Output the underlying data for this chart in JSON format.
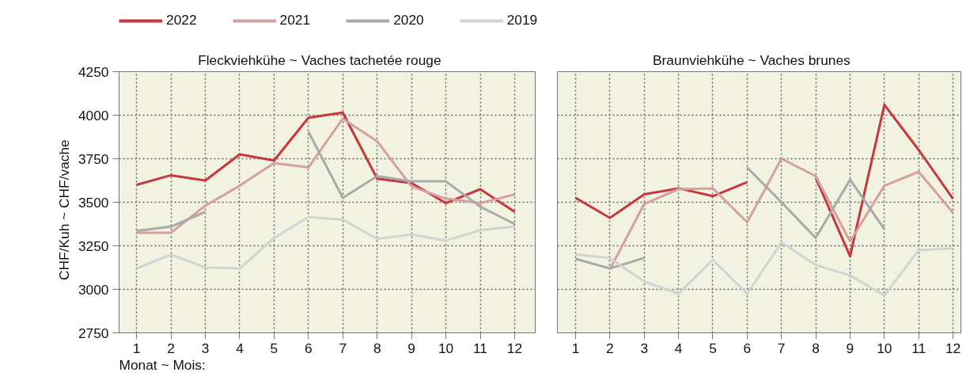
{
  "chart_data": [
    {
      "type": "line",
      "title": "Fleckviehkühe   ~   Vaches tachetée rouge",
      "ylabel": "CHF/Kuh   ~   CHF/vache",
      "xlabel": "Monat ~ Mois:",
      "x": [
        1,
        2,
        3,
        4,
        5,
        6,
        7,
        8,
        9,
        10,
        11,
        12
      ],
      "xlim": [
        0.49,
        12.6
      ],
      "xticks": [
        1,
        2,
        3,
        4,
        5,
        6,
        7,
        8,
        9,
        10,
        11,
        12
      ],
      "ylim": [
        2750,
        4250
      ],
      "yticks": [
        2750,
        3000,
        3250,
        3500,
        3750,
        4000,
        4250
      ],
      "grid": true,
      "legend": "top",
      "line_style": "solid",
      "marker": "none",
      "series": [
        {
          "name": "2022",
          "color": "#c8373d",
          "values": [
            3600,
            3655,
            3625,
            3775,
            3740,
            3985,
            4015,
            3635,
            3610,
            3495,
            3575,
            3445
          ]
        },
        {
          "name": "2021",
          "color": "#d4a0a0",
          "values": [
            3325,
            3325,
            3480,
            3595,
            3725,
            3700,
            3980,
            3850,
            3590,
            3520,
            3495,
            3545
          ]
        },
        {
          "name": "2020",
          "color": "#a9a9a9",
          "values": [
            3335,
            3360,
            3445,
            null,
            null,
            3905,
            3525,
            3650,
            3620,
            3620,
            3475,
            3375
          ]
        },
        {
          "name": "2019",
          "color": "#d3d3d3",
          "values": [
            3120,
            3200,
            3125,
            3120,
            3295,
            3415,
            3400,
            3290,
            3315,
            3280,
            3340,
            3360
          ]
        }
      ]
    },
    {
      "type": "line",
      "title": "Braunviehkühe   ~   Vaches brunes",
      "x": [
        1,
        2,
        3,
        4,
        5,
        6,
        7,
        8,
        9,
        10,
        11,
        12
      ],
      "xlim": [
        0.47,
        12.23
      ],
      "xticks": [
        1,
        2,
        3,
        4,
        5,
        6,
        7,
        8,
        9,
        10,
        11,
        12
      ],
      "ylim": [
        2750,
        4250
      ],
      "yticks": [
        2750,
        3000,
        3250,
        3500,
        3750,
        4000,
        4250
      ],
      "grid": true,
      "tick_labels": "x",
      "line_style": "solid",
      "marker": "none",
      "series": [
        {
          "color": "#c8373d",
          "values": [
            3525,
            3410,
            3545,
            3580,
            3535,
            3615,
            null,
            3640,
            3190,
            4060,
            3800,
            3520
          ]
        },
        {
          "color": "#d4a0a0",
          "values": [
            null,
            3115,
            3490,
            3575,
            3580,
            3385,
            3750,
            3650,
            3275,
            3595,
            3675,
            3440
          ]
        },
        {
          "color": "#a9a9a9",
          "values": [
            3175,
            3120,
            3180,
            null,
            null,
            3700,
            3500,
            3295,
            3630,
            3345,
            null,
            null
          ]
        },
        {
          "color": "#d3d3d3",
          "values": [
            3200,
            3180,
            3045,
            2975,
            3170,
            2975,
            3270,
            3140,
            3080,
            2965,
            3225,
            3235
          ]
        }
      ]
    }
  ]
}
